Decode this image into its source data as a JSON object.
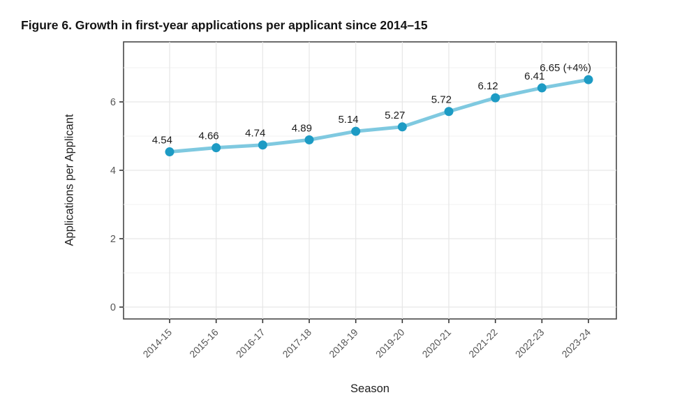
{
  "figure": {
    "title": "Figure 6. Growth in first-year applications per applicant since 2014–15"
  },
  "chart_data": {
    "type": "line",
    "title": "Figure 6. Growth in first-year applications per applicant since 2014–15",
    "categories": [
      "2014-15",
      "2015-16",
      "2016-17",
      "2017-18",
      "2018-19",
      "2019-20",
      "2020-21",
      "2021-22",
      "2022-23",
      "2023-24"
    ],
    "series": [
      {
        "name": "Applications per Applicant",
        "values": [
          4.54,
          4.66,
          4.74,
          4.89,
          5.14,
          5.27,
          5.72,
          6.12,
          6.41,
          6.65
        ],
        "point_labels": [
          "4.54",
          "4.66",
          "4.74",
          "4.89",
          "5.14",
          "5.27",
          "5.72",
          "6.12",
          "6.41",
          "6.65 (+4%)"
        ]
      }
    ],
    "xlabel": "Season",
    "ylabel": "Applications per Applicant",
    "yticks": [
      0,
      2,
      4,
      6
    ],
    "yticks_minor": [
      1,
      3,
      5,
      7
    ],
    "ylim": [
      0,
      7.75
    ],
    "grid": "major and minor horizontal, major vertical",
    "legend": "none",
    "colors": {
      "line": "#7fc9e0",
      "point": "#1d9bc4",
      "grid_major": "#e6e6e6",
      "grid_minor": "#f2f2f2",
      "panel_border": "#474747",
      "tick_mark": "#333333",
      "tick_text": "#555555",
      "data_label_text": "#1c1c1c",
      "panel_background": "#ffffff"
    }
  }
}
